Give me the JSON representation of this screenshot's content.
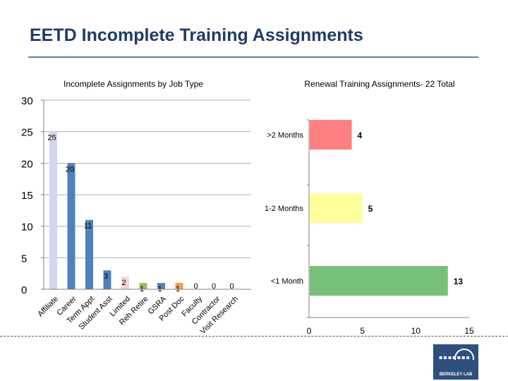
{
  "slide": {
    "title": "EETD Incomplete Training Assignments",
    "logo_text": "BERKELEY LAB"
  },
  "chart_data": [
    {
      "type": "bar",
      "title": "Incomplete Assignments by Job Type",
      "categories": [
        "Affiliate",
        "Career",
        "Term Appt",
        "Student Asst",
        "Limited",
        "Reh Retire",
        "GSRA",
        "Post Doc",
        "Faculty",
        "Contractor",
        "Visit Research"
      ],
      "values": [
        25,
        20,
        11,
        3,
        2,
        1,
        1,
        1,
        0,
        0,
        0
      ],
      "colors": [
        "#d4d6ef",
        "#4f81bd",
        "#4f81bd",
        "#4f81bd",
        "#f4d6cf",
        "#9bbb59",
        "#4f81bd",
        "#f79646",
        "#4f81bd",
        "#4f81bd",
        "#4f81bd"
      ],
      "ylim": [
        0,
        30
      ],
      "yticks": [
        0,
        5,
        10,
        15,
        20,
        25,
        30
      ],
      "grid": true
    },
    {
      "type": "bar",
      "orientation": "horizontal",
      "title": "Renewal Training Assignments- 22 Total",
      "categories": [
        ">2 Months",
        "1-2 Months",
        "<1 Month"
      ],
      "values": [
        4,
        5,
        13
      ],
      "colors": [
        "#ff7f7f",
        "#ffff99",
        "#77c077"
      ],
      "xlim": [
        0,
        15
      ],
      "xticks": [
        0,
        5,
        10,
        15
      ]
    }
  ]
}
